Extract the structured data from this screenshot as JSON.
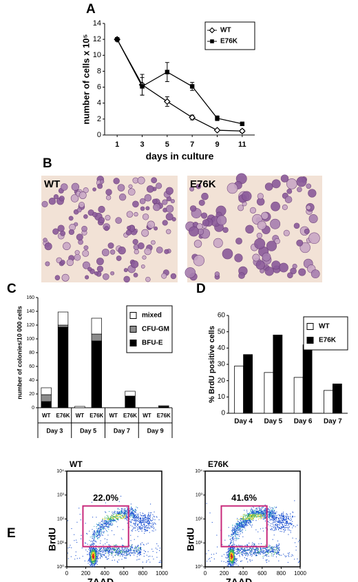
{
  "chart_data": [
    {
      "type": "line",
      "panel": "A",
      "xlabel": "days in culture",
      "ylabel": "number of cells x 10⁵",
      "x": [
        1,
        3,
        5,
        7,
        9,
        11
      ],
      "xlim": [
        0,
        12
      ],
      "xticks": [
        1,
        3,
        5,
        7,
        9,
        11
      ],
      "ylim": [
        0,
        14
      ],
      "yticks": [
        0,
        2,
        4,
        6,
        8,
        10,
        12,
        14
      ],
      "legend": "upper right",
      "series": [
        {
          "name": "WT",
          "color": "#000000",
          "marker": "diamond-open",
          "values": [
            12,
            6.3,
            4.2,
            2.2,
            0.6,
            0.5
          ],
          "errors": [
            0.1,
            1.3,
            0.6,
            0.3,
            0.1,
            0.2
          ]
        },
        {
          "name": "E76K",
          "color": "#000000",
          "marker": "square",
          "values": [
            12,
            6.1,
            7.9,
            6.1,
            2.1,
            1.4
          ],
          "errors": [
            0.1,
            1.1,
            1.2,
            0.5,
            0.3,
            0.2
          ]
        }
      ]
    },
    {
      "type": "image",
      "panel": "B",
      "images": [
        "WT",
        "E76K"
      ]
    },
    {
      "type": "stacked-bar",
      "panel": "C",
      "ylabel": "number of colonies/10 000 cells",
      "categories": [
        "WT",
        "E76K",
        "WT",
        "E76K",
        "WT",
        "E76K",
        "WT",
        "E76K"
      ],
      "groups": [
        "Day 3",
        "Day 5",
        "Day 7",
        "Day 9"
      ],
      "ylim": [
        0,
        160
      ],
      "yticks": [
        0,
        20,
        40,
        60,
        80,
        100,
        120,
        140,
        160
      ],
      "legend": "upper right",
      "series": [
        {
          "name": "mixed",
          "color": "#ffffff",
          "values": [
            10,
            19,
            2,
            23,
            0,
            7,
            0,
            1
          ]
        },
        {
          "name": "CFU-GM",
          "color": "#8c8c8c",
          "values": [
            10,
            3,
            0,
            10,
            0,
            0,
            0,
            0
          ]
        },
        {
          "name": "BFU-E",
          "color": "#000000",
          "values": [
            9,
            117,
            0,
            97,
            0,
            17,
            0,
            2
          ]
        }
      ]
    },
    {
      "type": "grouped-bar",
      "panel": "D",
      "ylabel": "% BrdU positive cells",
      "categories": [
        "Day 4",
        "Day 5",
        "Day 6",
        "Day 7"
      ],
      "ylim": [
        0,
        60
      ],
      "yticks": [
        0,
        10,
        20,
        30,
        40,
        50,
        60
      ],
      "legend": "upper right",
      "series": [
        {
          "name": "WT",
          "color": "#ffffff",
          "values": [
            29,
            25,
            22,
            14
          ]
        },
        {
          "name": "E76K",
          "color": "#000000",
          "values": [
            36,
            48,
            42,
            18
          ]
        }
      ]
    },
    {
      "type": "flow",
      "panel": "E",
      "title": "WT",
      "xlabel": "7AAD",
      "ylabel": "BrdU",
      "xlim": [
        0,
        1000
      ],
      "xticks": [
        0,
        200,
        400,
        600,
        800,
        1000
      ],
      "ylim": [
        1,
        10000
      ],
      "log_y": true,
      "yticks": [
        {
          "value": 1,
          "label": "10⁰"
        },
        {
          "value": 10,
          "label": "10¹"
        },
        {
          "value": 100,
          "label": "10²"
        },
        {
          "value": 1000,
          "label": "10³"
        },
        {
          "value": 10000,
          "label": "10⁴"
        }
      ],
      "gate": {
        "x": [
          170,
          650
        ],
        "y": [
          7,
          350
        ],
        "label": "22.0%",
        "color": "#c8287a"
      }
    },
    {
      "type": "flow",
      "title": "E76K",
      "xlabel": "7AAD",
      "ylabel": "BrdU",
      "xlim": [
        0,
        1000
      ],
      "xticks": [
        0,
        200,
        400,
        600,
        800,
        1000
      ],
      "ylim": [
        1,
        10000
      ],
      "log_y": true,
      "yticks": [
        {
          "value": 1,
          "label": "10⁰"
        },
        {
          "value": 10,
          "label": "10¹"
        },
        {
          "value": 100,
          "label": "10²"
        },
        {
          "value": 1000,
          "label": "10³"
        },
        {
          "value": 10000,
          "label": "10⁴"
        }
      ],
      "gate": {
        "x": [
          170,
          650
        ],
        "y": [
          7,
          350
        ],
        "label": "41.6%",
        "color": "#c8287a"
      }
    }
  ]
}
